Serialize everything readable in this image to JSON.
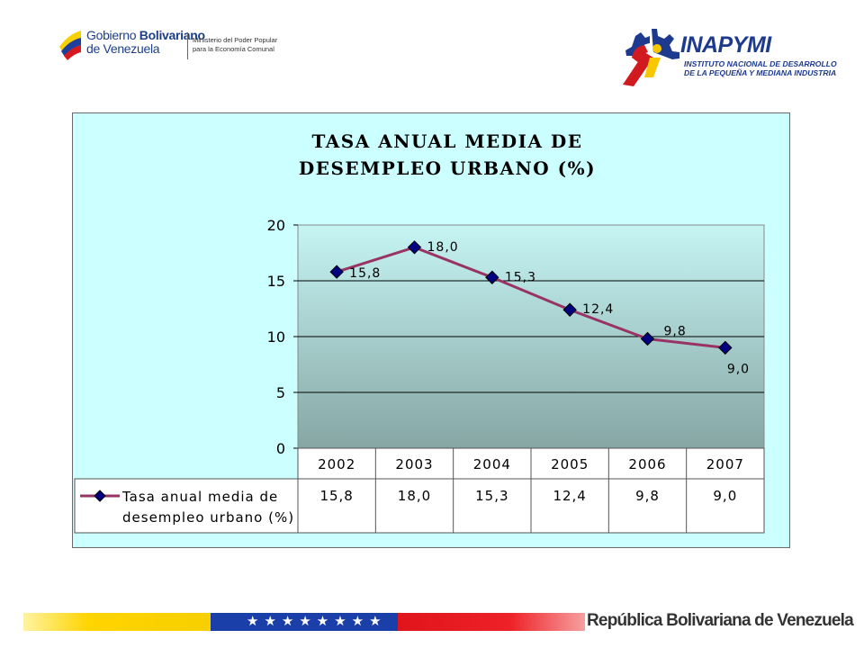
{
  "header": {
    "gov_logo": {
      "line1_a": "Gobierno ",
      "line1_b": "Bolivariano",
      "line2": "de Venezuela",
      "sub1": "Ministerio del Poder Popular",
      "sub2": "para la Economía Comunal"
    },
    "inapymi_logo": {
      "name": "INAPYMI",
      "desc1": "INSTITUTO NACIONAL DE DESARROLLO",
      "desc2": "DE LA PEQUEÑA Y MEDIANA INDUSTRIA"
    }
  },
  "colors": {
    "panel_bg": "#ccffff",
    "line": "#993366",
    "marker": "#000080",
    "plot_top": "#c6f5f4",
    "plot_bottom": "#86a6a4"
  },
  "chart_data": {
    "type": "line",
    "title_line1": "TASA ANUAL MEDIA DE",
    "title_line2": "DESEMPLEO URBANO  (%)",
    "categories": [
      "2002",
      "2003",
      "2004",
      "2005",
      "2006",
      "2007"
    ],
    "series": [
      {
        "name_line1": "Tasa anual media de",
        "name_line2": "desempleo urbano (%)",
        "values": [
          15.8,
          18.0,
          15.3,
          12.4,
          9.8,
          9.0
        ],
        "labels": [
          "15,8",
          "18,0",
          "15,3",
          "12,4",
          "9,8",
          "9,0"
        ]
      }
    ],
    "y_ticks": [
      "0",
      "5",
      "10",
      "15",
      "20"
    ],
    "ylim": [
      0,
      20
    ],
    "grid": true,
    "data_table": true
  },
  "footer": {
    "stars": "★★★★★★★★",
    "text": "República Bolivariana de Venezuela"
  }
}
